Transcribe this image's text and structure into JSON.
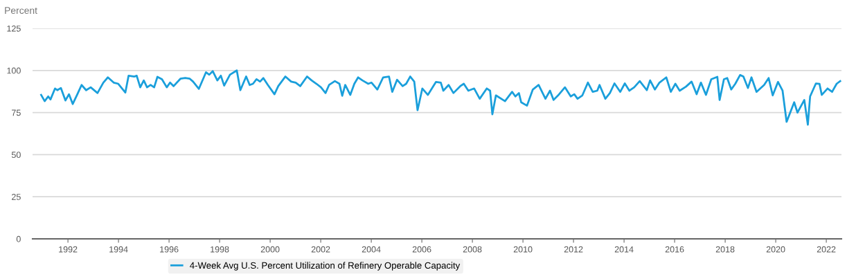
{
  "chart_data": {
    "type": "line",
    "ylabel": "Percent",
    "xlim": [
      1990.6,
      2022.6
    ],
    "xticks": [
      1992,
      1994,
      1996,
      1998,
      2000,
      2002,
      2004,
      2006,
      2008,
      2010,
      2012,
      2014,
      2016,
      2018,
      2020,
      2022
    ],
    "ylim": [
      0,
      125
    ],
    "yticks": [
      0,
      25,
      50,
      75,
      100,
      125
    ],
    "grid": "y",
    "legend": "bottom",
    "marker": "none",
    "line_style": "solid",
    "series": [
      {
        "name": "4-Week Avg U.S. Percent Utilization of Refinery Operable Capacity",
        "color": "#1a9fdb",
        "x": [
          1990.94,
          1991.08,
          1991.22,
          1991.31,
          1991.49,
          1991.58,
          1991.72,
          1991.9,
          1992.04,
          1992.19,
          1992.36,
          1992.54,
          1992.72,
          1992.9,
          1993.17,
          1993.4,
          1993.58,
          1993.81,
          1993.99,
          1994.27,
          1994.4,
          1994.63,
          1994.72,
          1994.86,
          1995.0,
          1995.13,
          1995.27,
          1995.41,
          1995.54,
          1995.72,
          1995.91,
          1996.04,
          1996.18,
          1996.45,
          1996.64,
          1996.82,
          1996.95,
          1997.18,
          1997.46,
          1997.59,
          1997.73,
          1997.91,
          1998.05,
          1998.18,
          1998.41,
          1998.68,
          1998.82,
          1999.05,
          1999.19,
          1999.32,
          1999.46,
          1999.6,
          1999.73,
          1999.91,
          2000.17,
          2000.32,
          2000.6,
          2000.83,
          2001.01,
          2001.19,
          2001.46,
          2001.64,
          2001.83,
          2002.01,
          2002.19,
          2002.33,
          2002.56,
          2002.74,
          2002.85,
          2002.97,
          2003.17,
          2003.33,
          2003.48,
          2003.65,
          2003.88,
          2004.01,
          2004.24,
          2004.47,
          2004.7,
          2004.83,
          2005.02,
          2005.24,
          2005.38,
          2005.54,
          2005.7,
          2005.83,
          2006.02,
          2006.24,
          2006.56,
          2006.75,
          2006.85,
          2007.06,
          2007.25,
          2007.52,
          2007.66,
          2007.84,
          2008.07,
          2008.29,
          2008.57,
          2008.7,
          2008.79,
          2008.93,
          2009.29,
          2009.57,
          2009.7,
          2009.84,
          2009.93,
          2010.16,
          2010.39,
          2010.62,
          2010.89,
          2011.07,
          2011.21,
          2011.39,
          2011.66,
          2011.89,
          2012.03,
          2012.16,
          2012.35,
          2012.57,
          2012.76,
          2012.94,
          2013.03,
          2013.26,
          2013.44,
          2013.62,
          2013.85,
          2014.03,
          2014.21,
          2014.4,
          2014.62,
          2014.9,
          2015.03,
          2015.22,
          2015.4,
          2015.67,
          2015.85,
          2016.03,
          2016.2,
          2016.45,
          2016.67,
          2016.87,
          2017.04,
          2017.24,
          2017.45,
          2017.69,
          2017.78,
          2017.95,
          2018.08,
          2018.24,
          2018.4,
          2018.59,
          2018.72,
          2018.9,
          2019.04,
          2019.24,
          2019.54,
          2019.72,
          2019.88,
          2020.09,
          2020.27,
          2020.43,
          2020.73,
          2020.86,
          2021.13,
          2021.27,
          2021.36,
          2021.59,
          2021.73,
          2021.82,
          2022.05,
          2022.23,
          2022.41,
          2022.55
        ],
        "values": [
          85.5,
          81.8,
          84.6,
          82.8,
          89.3,
          88.3,
          89.6,
          82.2,
          85.9,
          80.1,
          85.5,
          91.4,
          88.3,
          90.0,
          86.6,
          92.8,
          95.9,
          92.8,
          92.1,
          86.9,
          96.9,
          96.4,
          96.9,
          90.0,
          94.1,
          90.0,
          91.4,
          90.0,
          96.2,
          94.8,
          90.0,
          92.8,
          90.7,
          95.1,
          95.5,
          95.1,
          93.4,
          89.1,
          98.9,
          97.5,
          99.6,
          94.1,
          96.9,
          91.0,
          97.5,
          100.0,
          88.3,
          96.4,
          91.4,
          92.1,
          94.8,
          93.4,
          95.5,
          91.4,
          85.9,
          90.7,
          96.4,
          93.4,
          92.8,
          90.7,
          96.4,
          94.1,
          92.1,
          90.0,
          86.6,
          91.4,
          93.7,
          92.1,
          85.0,
          91.4,
          85.5,
          92.1,
          95.9,
          94.1,
          92.1,
          92.8,
          88.7,
          95.9,
          96.4,
          87.3,
          94.5,
          90.7,
          92.1,
          96.4,
          93.4,
          76.4,
          89.3,
          85.5,
          93.2,
          92.8,
          88.0,
          91.4,
          86.6,
          90.7,
          92.1,
          88.0,
          89.3,
          83.2,
          89.3,
          88.0,
          74.0,
          85.2,
          81.8,
          87.3,
          84.6,
          86.6,
          81.1,
          79.1,
          88.7,
          91.4,
          83.2,
          88.0,
          82.5,
          85.2,
          90.0,
          84.6,
          85.9,
          83.2,
          85.2,
          92.8,
          87.3,
          88.0,
          91.4,
          83.2,
          86.6,
          92.3,
          87.3,
          92.3,
          88.0,
          90.0,
          93.7,
          88.3,
          94.1,
          88.7,
          92.8,
          95.9,
          87.3,
          92.1,
          88.0,
          90.4,
          93.4,
          85.9,
          92.8,
          85.5,
          94.8,
          96.2,
          82.5,
          94.8,
          95.5,
          88.7,
          92.1,
          97.3,
          96.4,
          89.6,
          95.9,
          87.3,
          91.4,
          95.5,
          85.2,
          93.2,
          88.0,
          69.5,
          81.1,
          75.0,
          82.5,
          67.8,
          84.6,
          92.3,
          92.1,
          85.5,
          89.3,
          87.3,
          92.1,
          93.7
        ]
      }
    ]
  }
}
